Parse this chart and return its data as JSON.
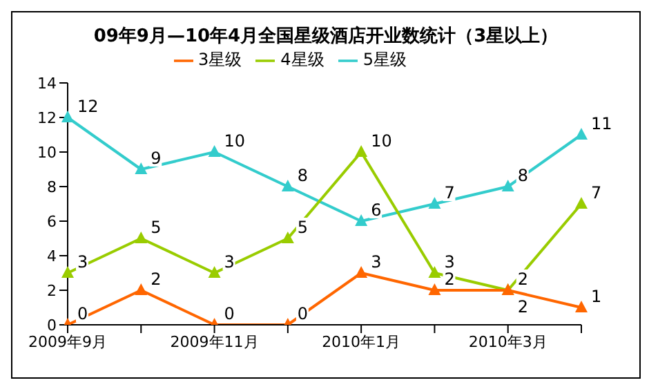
{
  "chart_data": {
    "type": "line",
    "title": "09年9月—10年4月全国星级酒店开业数统计（3星以上）",
    "categories": [
      "2009年9月",
      null,
      "2009年11月",
      null,
      "2010年1月",
      null,
      "2010年3月",
      null
    ],
    "series": [
      {
        "name": "5星级",
        "color": "#33cccc",
        "values": [
          12,
          9,
          10,
          8,
          6,
          7,
          8,
          11
        ]
      },
      {
        "name": "4星级",
        "color": "#99cc00",
        "values": [
          3,
          5,
          3,
          5,
          10,
          3,
          2,
          7
        ]
      },
      {
        "name": "3星级",
        "color": "#ff6600",
        "values": [
          0,
          2,
          0,
          0,
          3,
          2,
          2,
          1
        ]
      }
    ],
    "ylim": [
      0,
      14
    ],
    "yticks": [
      0,
      2,
      4,
      6,
      8,
      10,
      12,
      14
    ],
    "grid": false,
    "legend": "top",
    "marker": "triangle",
    "line_style": "solid",
    "data_labels": true
  }
}
